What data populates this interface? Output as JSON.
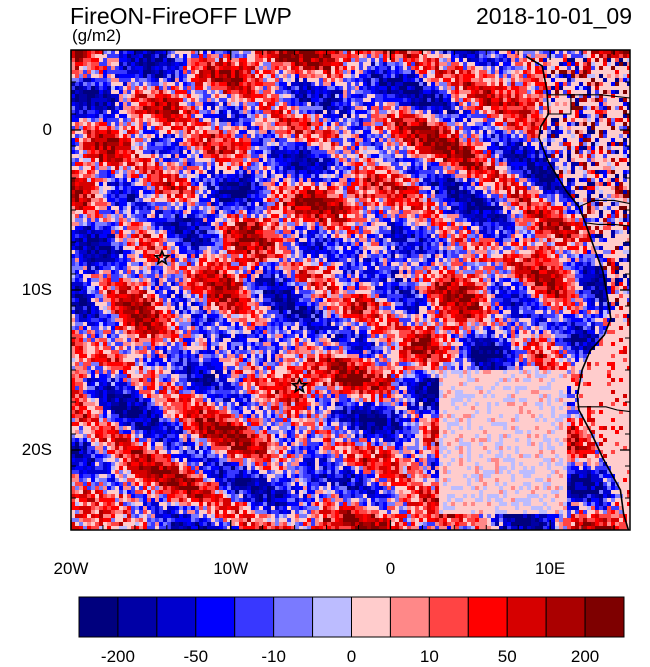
{
  "title": "FireON-FireOFF LWP",
  "timestamp": "2018-10-01_09",
  "units": "(g/m2)",
  "map": {
    "lon_range": [
      -20,
      15
    ],
    "lat_range": [
      -25,
      5
    ],
    "lat_ticks": [
      {
        "label": "0",
        "lat": 0
      },
      {
        "label": "10S",
        "lat": -10
      },
      {
        "label": "20S",
        "lat": -20
      }
    ],
    "lon_ticks": [
      {
        "label": "20W",
        "lon": -20
      },
      {
        "label": "10W",
        "lon": -10
      },
      {
        "label": "0",
        "lon": 0
      },
      {
        "label": "10E",
        "lon": 10
      }
    ],
    "markers": [
      {
        "name": "star-marker-west",
        "lon": -14.3,
        "lat": -8.0
      },
      {
        "name": "star-marker-center",
        "lon": -5.7,
        "lat": -16.0
      }
    ],
    "coast": [
      [
        8.5,
        4.6
      ],
      [
        9.5,
        4.0
      ],
      [
        9.8,
        2.5
      ],
      [
        9.9,
        1.0
      ],
      [
        9.4,
        0.2
      ],
      [
        9.3,
        -0.5
      ],
      [
        9.9,
        -2.0
      ],
      [
        11.0,
        -3.8
      ],
      [
        11.8,
        -4.8
      ],
      [
        12.2,
        -5.8
      ],
      [
        12.8,
        -7.5
      ],
      [
        13.3,
        -8.8
      ],
      [
        13.6,
        -10.5
      ],
      [
        13.8,
        -11.8
      ],
      [
        13.4,
        -12.8
      ],
      [
        12.5,
        -13.8
      ],
      [
        12.0,
        -15.0
      ],
      [
        11.7,
        -16.6
      ],
      [
        11.8,
        -17.5
      ],
      [
        12.6,
        -19.0
      ],
      [
        13.3,
        -20.5
      ],
      [
        14.4,
        -22.5
      ],
      [
        14.6,
        -24.0
      ],
      [
        14.9,
        -25
      ]
    ],
    "borders": [
      [
        [
          9.8,
          2.2
        ],
        [
          11.3,
          2.2
        ],
        [
          12.0,
          2.2
        ],
        [
          13.2,
          2.2
        ],
        [
          15,
          2.0
        ]
      ],
      [
        [
          9.8,
          1.0
        ],
        [
          11.3,
          1.0
        ],
        [
          11.3,
          2.2
        ]
      ],
      [
        [
          11.8,
          -4.8
        ],
        [
          12.7,
          -4.4
        ],
        [
          14.0,
          -4.4
        ],
        [
          15,
          -4.6
        ]
      ],
      [
        [
          12.2,
          -5.8
        ],
        [
          13.0,
          -5.9
        ],
        [
          14.0,
          -5.9
        ],
        [
          15,
          -6.0
        ]
      ],
      [
        [
          11.7,
          -17.3
        ],
        [
          13.5,
          -17.3
        ],
        [
          14.2,
          -17.5
        ],
        [
          15,
          -17.6
        ]
      ]
    ]
  },
  "colorbar": {
    "labels": [
      {
        "text": "-200",
        "boundary": 1
      },
      {
        "text": "-50",
        "boundary": 3
      },
      {
        "text": "-10",
        "boundary": 5
      },
      {
        "text": "0",
        "boundary": 7
      },
      {
        "text": "10",
        "boundary": 9
      },
      {
        "text": "50",
        "boundary": 11
      },
      {
        "text": "200",
        "boundary": 13
      }
    ],
    "colors": [
      "#00007e",
      "#0000a6",
      "#0000ce",
      "#0000fe",
      "#3838ff",
      "#7a7aff",
      "#bcbcff",
      "#ffcccc",
      "#ff8888",
      "#ff4444",
      "#ff0000",
      "#d60000",
      "#aa0000",
      "#7e0000"
    ]
  }
}
